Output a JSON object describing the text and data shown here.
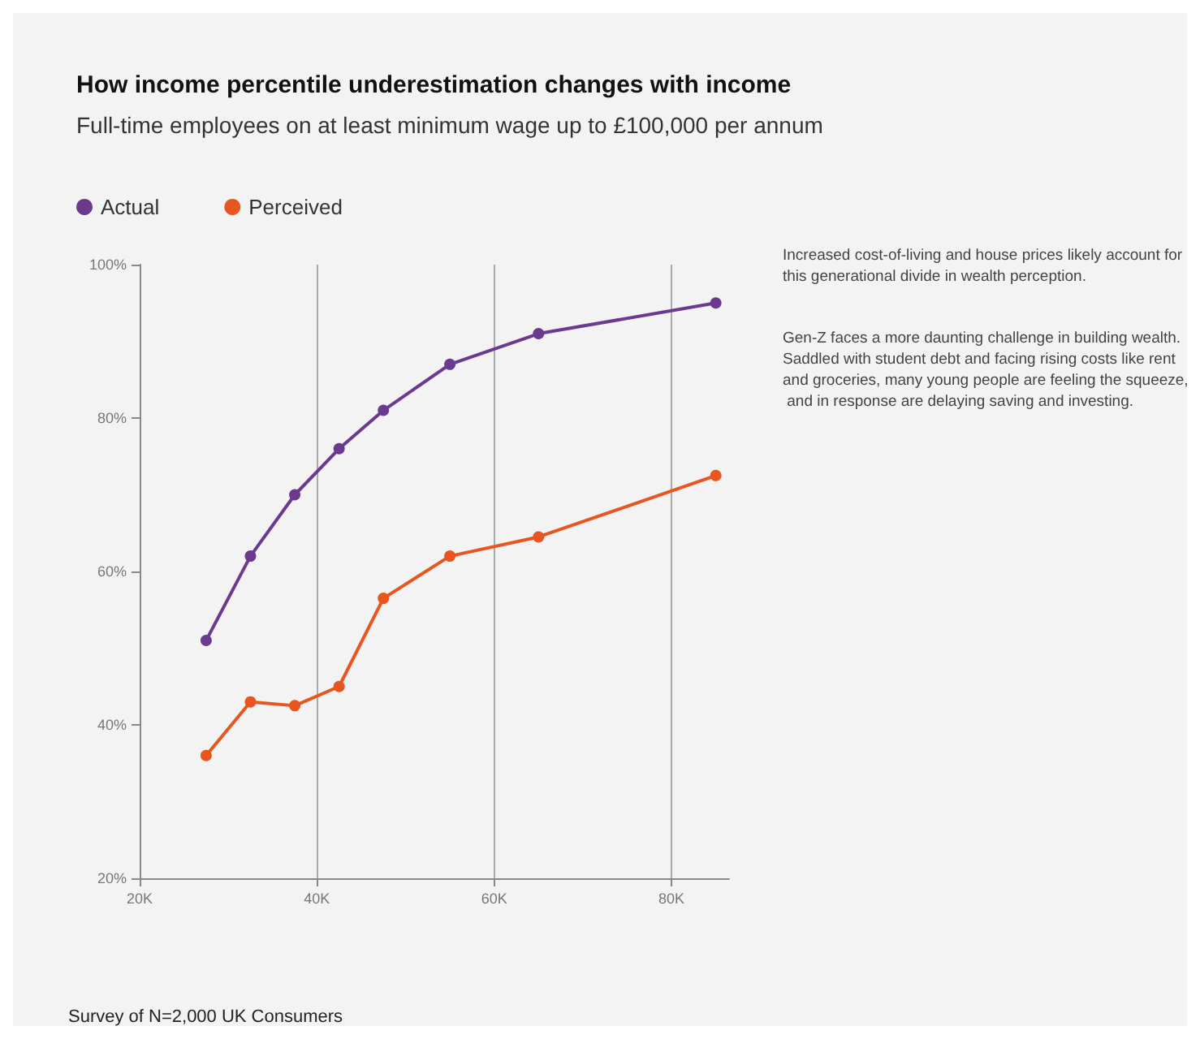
{
  "chart_data": {
    "type": "line",
    "title": "How income percentile underestimation changes with income",
    "subtitle": "Full-time employees on at least minimum wage up to £100,000 per annum",
    "x": [
      27.5,
      32.5,
      37.5,
      42.5,
      47.5,
      55,
      65,
      85
    ],
    "series": [
      {
        "name": "Actual",
        "color": "#6b3a8e",
        "values": [
          51,
          62,
          70,
          76,
          81,
          87,
          91,
          95
        ]
      },
      {
        "name": "Perceived",
        "color": "#e8551e",
        "values": [
          36,
          43,
          42.5,
          45,
          56.5,
          62,
          64.5,
          72.5
        ]
      }
    ],
    "xlim": [
      20,
      86.5
    ],
    "xticks": [
      {
        "value": 20,
        "label": "20K"
      },
      {
        "value": 40,
        "label": "40K"
      },
      {
        "value": 60,
        "label": "60K"
      },
      {
        "value": 80,
        "label": "80K"
      }
    ],
    "ylim": [
      20,
      100
    ],
    "yticks": [
      {
        "value": 20,
        "label": "20%"
      },
      {
        "value": 40,
        "label": "40%"
      },
      {
        "value": 60,
        "label": "60%"
      },
      {
        "value": 80,
        "label": "80%"
      },
      {
        "value": 100,
        "label": "100%"
      }
    ],
    "grid": "x",
    "legend": "top left",
    "marker": "circle",
    "line_style": "solid",
    "annotations": [
      "Increased cost-of-living and house prices likely account for this generational divide in wealth perception.",
      "Gen-Z faces a more daunting challenge in building wealth. Saddled with student debt and facing rising costs like rent and groceries, many young people are feeling the squeeze, and in response are delaying saving and investing.",
      "Survey of N=2,000 UK Consumers"
    ]
  }
}
